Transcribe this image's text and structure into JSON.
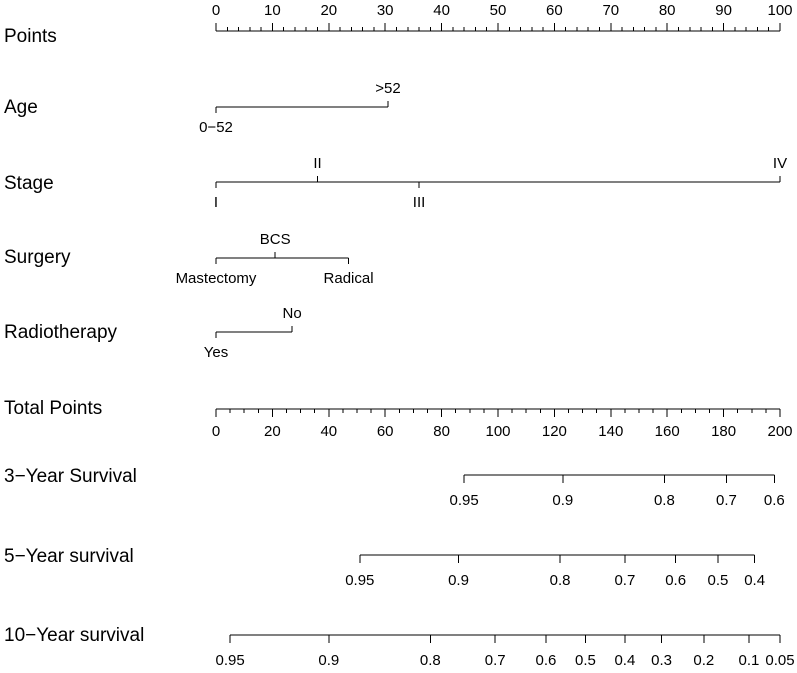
{
  "chart_data": {
    "type": "nomogram",
    "title": "",
    "rows": [
      {
        "key": "points",
        "label": "Points",
        "kind": "scale",
        "min": 0,
        "max": 100,
        "labeled_ticks": [
          {
            "label": "0",
            "value": 0
          },
          {
            "label": "10",
            "value": 10
          },
          {
            "label": "20",
            "value": 20
          },
          {
            "label": "30",
            "value": 30
          },
          {
            "label": "40",
            "value": 40
          },
          {
            "label": "50",
            "value": 50
          },
          {
            "label": "60",
            "value": 60
          },
          {
            "label": "70",
            "value": 70
          },
          {
            "label": "80",
            "value": 80
          },
          {
            "label": "90",
            "value": 90
          },
          {
            "label": "100",
            "value": 100
          }
        ],
        "minor_step": 2,
        "label_side": "above"
      },
      {
        "key": "age",
        "label": "Age",
        "kind": "variable",
        "levels": [
          {
            "label": "0−52",
            "points": 0,
            "side": "below"
          },
          {
            "label": ">52",
            "points": 30.5,
            "side": "above"
          }
        ]
      },
      {
        "key": "stage",
        "label": "Stage",
        "kind": "variable",
        "levels": [
          {
            "label": "I",
            "points": 0,
            "side": "below"
          },
          {
            "label": "II",
            "points": 18,
            "side": "above"
          },
          {
            "label": "III",
            "points": 36,
            "side": "below"
          },
          {
            "label": "IV",
            "points": 100,
            "side": "above"
          }
        ]
      },
      {
        "key": "surgery",
        "label": "Surgery",
        "kind": "variable",
        "levels": [
          {
            "label": "Mastectomy",
            "points": 0,
            "side": "below"
          },
          {
            "label": "BCS",
            "points": 10.5,
            "side": "above"
          },
          {
            "label": "Radical",
            "points": 23.5,
            "side": "below"
          }
        ]
      },
      {
        "key": "radiotherapy",
        "label": "Radiotherapy",
        "kind": "variable",
        "levels": [
          {
            "label": "Yes",
            "points": 0,
            "side": "below"
          },
          {
            "label": "No",
            "points": 13.5,
            "side": "above"
          }
        ]
      },
      {
        "key": "total",
        "label": "Total Points",
        "kind": "scale",
        "min": 0,
        "max": 200,
        "labeled_ticks": [
          {
            "label": "0",
            "value": 0
          },
          {
            "label": "20",
            "value": 20
          },
          {
            "label": "40",
            "value": 40
          },
          {
            "label": "60",
            "value": 60
          },
          {
            "label": "80",
            "value": 80
          },
          {
            "label": "100",
            "value": 100
          },
          {
            "label": "120",
            "value": 120
          },
          {
            "label": "140",
            "value": 140
          },
          {
            "label": "160",
            "value": 160
          },
          {
            "label": "180",
            "value": 180
          },
          {
            "label": "200",
            "value": 200
          }
        ],
        "minor_step": 5,
        "label_side": "below"
      },
      {
        "key": "surv3",
        "label": "3−Year Survival",
        "kind": "probability",
        "ticks": [
          {
            "label": "0.95",
            "total_points": 88
          },
          {
            "label": "0.9",
            "total_points": 123
          },
          {
            "label": "0.8",
            "total_points": 159
          },
          {
            "label": "0.7",
            "total_points": 181
          },
          {
            "label": "0.6",
            "total_points": 198
          }
        ]
      },
      {
        "key": "surv5",
        "label": "5−Year survival",
        "kind": "probability",
        "ticks": [
          {
            "label": "0.95",
            "total_points": 51
          },
          {
            "label": "0.9",
            "total_points": 86
          },
          {
            "label": "0.8",
            "total_points": 122
          },
          {
            "label": "0.7",
            "total_points": 145
          },
          {
            "label": "0.6",
            "total_points": 163
          },
          {
            "label": "0.5",
            "total_points": 178
          },
          {
            "label": "0.4",
            "total_points": 191
          }
        ]
      },
      {
        "key": "surv10",
        "label": "10−Year survival",
        "kind": "probability",
        "ticks": [
          {
            "label": "0.95",
            "total_points": 5
          },
          {
            "label": "0.9",
            "total_points": 40
          },
          {
            "label": "0.8",
            "total_points": 76
          },
          {
            "label": "0.7",
            "total_points": 99
          },
          {
            "label": "0.6",
            "total_points": 117
          },
          {
            "label": "0.5",
            "total_points": 131
          },
          {
            "label": "0.4",
            "total_points": 145
          },
          {
            "label": "0.3",
            "total_points": 158
          },
          {
            "label": "0.2",
            "total_points": 173
          },
          {
            "label": "0.1",
            "total_points": 189
          },
          {
            "label": "0.05",
            "total_points": 200
          }
        ]
      }
    ]
  }
}
